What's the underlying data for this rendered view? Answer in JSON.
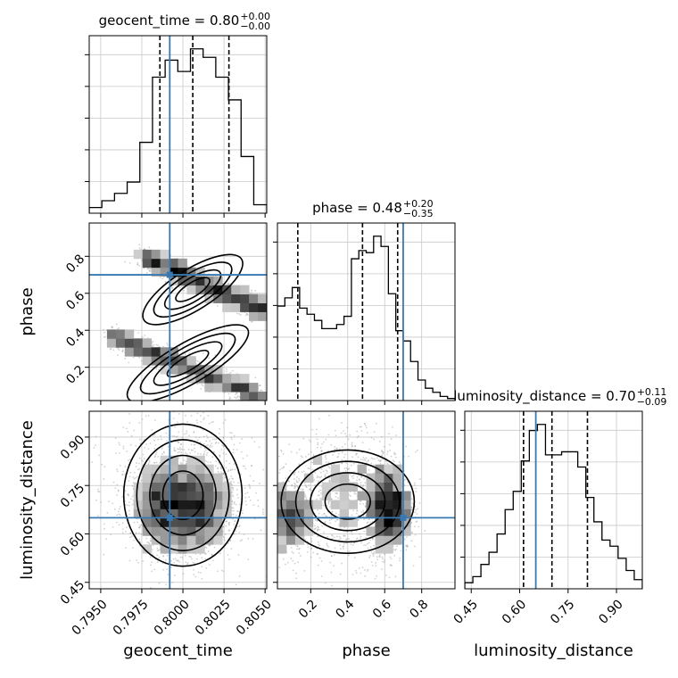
{
  "chart_data": {
    "type": "corner",
    "parameters": [
      "geocent_time",
      "phase",
      "luminosity_distance"
    ],
    "colors": {
      "injection": "#3a78b0",
      "histogram": "#000000",
      "contour": "#000000",
      "grid": "#c8c8c8",
      "points": "#9a9a9a"
    },
    "ranges": {
      "geocent_time": [
        0.7943,
        0.8051
      ],
      "phase": [
        0.02,
        0.98
      ],
      "luminosity_distance": [
        0.43,
        0.98
      ]
    },
    "injection": {
      "geocent_time": 0.7992,
      "phase": 0.7,
      "luminosity_distance": 0.65
    },
    "titles": [
      {
        "name": "geocent_time",
        "median": "0.80",
        "plus": "+0.00",
        "minus": "−0.00"
      },
      {
        "name": "phase",
        "median": "0.48",
        "plus": "+0.20",
        "minus": "−0.35"
      },
      {
        "name": "luminosity_distance",
        "median": "0.70",
        "plus": "+0.11",
        "minus": "−0.09"
      }
    ],
    "quantiles": {
      "geocent_time": [
        0.7986,
        0.8006,
        0.8028
      ],
      "phase": [
        0.13,
        0.48,
        0.67
      ],
      "luminosity_distance": [
        0.612,
        0.7,
        0.81
      ]
    },
    "histograms": {
      "geocent_time": {
        "edges": [
          0.7943,
          0.79507,
          0.79584,
          0.79661,
          0.79738,
          0.79815,
          0.79892,
          0.79969,
          0.80046,
          0.80123,
          0.802,
          0.80277,
          0.80354,
          0.80431,
          0.8051
        ],
        "counts": [
          1.0,
          2.2,
          3.5,
          5.5,
          12.5,
          24.0,
          27.0,
          25.0,
          29.0,
          27.5,
          24.0,
          20.0,
          10.0,
          1.5
        ]
      },
      "phase": {
        "edges": [
          0.02,
          0.06,
          0.1,
          0.14,
          0.18,
          0.22,
          0.26,
          0.3,
          0.34,
          0.38,
          0.42,
          0.46,
          0.5,
          0.54,
          0.58,
          0.62,
          0.66,
          0.7,
          0.74,
          0.78,
          0.82,
          0.86,
          0.9,
          0.94,
          0.98
        ],
        "counts": [
          23.0,
          25.0,
          27.5,
          22.5,
          21.0,
          19.5,
          17.5,
          17.5,
          18.5,
          20.5,
          34.5,
          36.5,
          36.0,
          40.0,
          37.5,
          26.0,
          17.0,
          14.5,
          9.5,
          5.0,
          3.0,
          2.0,
          1.0,
          0.5
        ]
      },
      "luminosity_distance": {
        "edges": [
          0.43,
          0.455,
          0.48,
          0.505,
          0.53,
          0.555,
          0.58,
          0.605,
          0.63,
          0.655,
          0.68,
          0.705,
          0.73,
          0.755,
          0.78,
          0.805,
          0.83,
          0.855,
          0.88,
          0.905,
          0.93,
          0.955,
          0.98
        ],
        "counts": [
          1.0,
          2.0,
          4.0,
          6.0,
          9.0,
          13.0,
          16.0,
          21.0,
          26.0,
          27.0,
          22.0,
          22.0,
          22.5,
          22.5,
          20.0,
          15.0,
          11.0,
          8.0,
          7.0,
          5.0,
          3.0,
          1.5
        ]
      }
    },
    "ticks": {
      "geocent_time": [
        "0.7950",
        "0.7975",
        "0.8000",
        "0.8025",
        "0.8050"
      ],
      "phase": [
        "0.2",
        "0.4",
        "0.6",
        "0.8"
      ],
      "luminosity_distance": [
        "0.45",
        "0.60",
        "0.75",
        "0.90"
      ]
    },
    "axis_labels": {
      "x": [
        "geocent_time",
        "phase",
        "luminosity_distance"
      ],
      "y": [
        "phase",
        "luminosity_distance"
      ]
    },
    "grid": true,
    "levels": 4
  }
}
